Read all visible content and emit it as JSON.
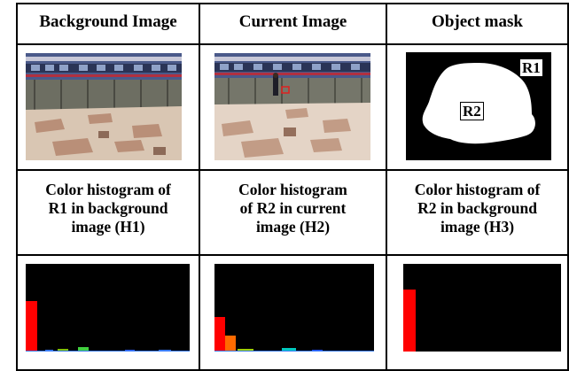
{
  "headers": [
    "Background Image",
    "Current Image",
    "Object mask"
  ],
  "captions": [
    "Color histogram of\nR1 in background\nimage (H1)",
    "Color histogram\nof R2 in current\nimage (H2)",
    "Color histogram of\nR2 in background\nimage (H3)"
  ],
  "mask": {
    "r1_label": "R1",
    "r2_label": "R2"
  },
  "histograms": {
    "h1": [
      {
        "color": "#ff0000",
        "value": 0.58
      },
      {
        "color": "#3a7dff",
        "value": 0.015
      },
      {
        "color": "#80c000",
        "value": 0.03
      },
      {
        "color": "#40d040",
        "value": 0.05
      },
      {
        "color": "#3060ff",
        "value": 0.02
      },
      {
        "color": "#3a7dff",
        "value": 0.015
      }
    ],
    "h2": [
      {
        "color": "#ff0000",
        "value": 0.39
      },
      {
        "color": "#ff6a00",
        "value": 0.18
      },
      {
        "color": "#a0d000",
        "value": 0.03
      },
      {
        "color": "#00c8c0",
        "value": 0.04
      },
      {
        "color": "#2050ff",
        "value": 0.02
      }
    ],
    "h3": [
      {
        "color": "#ff0000",
        "value": 0.71
      }
    ]
  }
}
